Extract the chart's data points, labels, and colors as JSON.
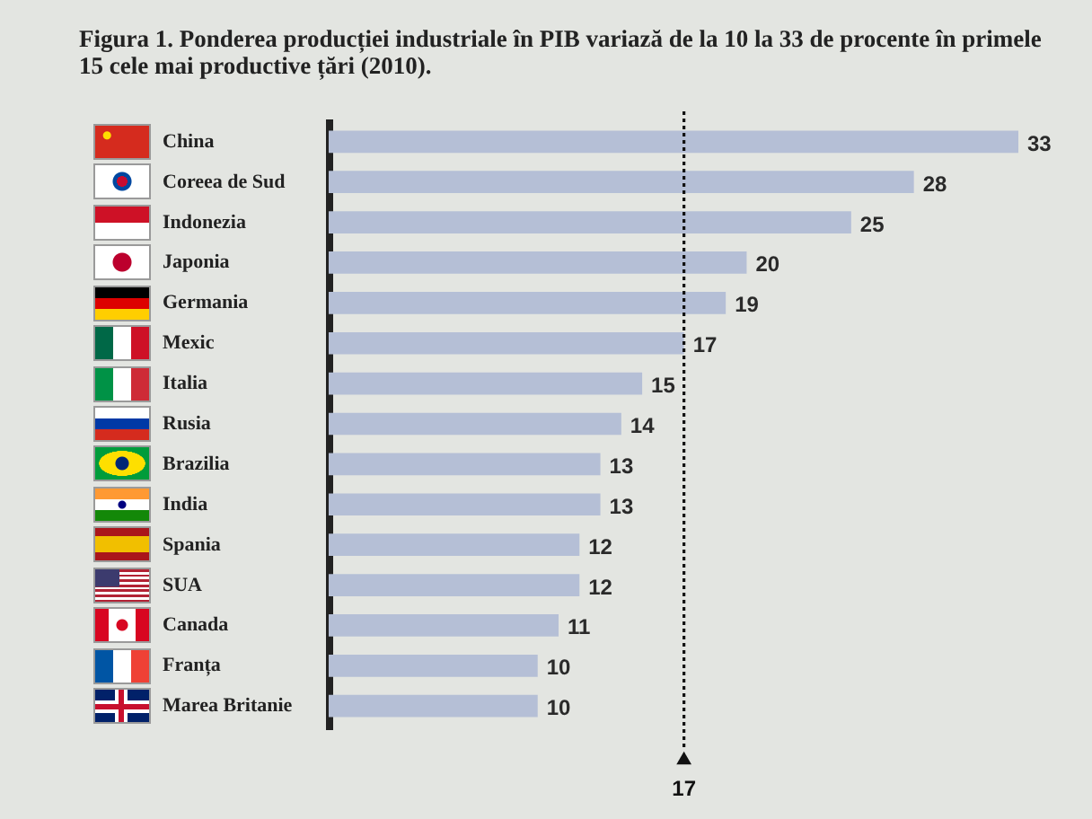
{
  "chart_data": {
    "type": "bar",
    "orientation": "horizontal",
    "title": "Figura 1. Ponderea producției industriale în PIB variază de la 10 la 33 de procente în primele 15 cele mai productive țări (2010).",
    "categories": [
      "China",
      "Coreea de Sud",
      "Indonezia",
      "Japonia",
      "Germania",
      "Mexic",
      "Italia",
      "Rusia",
      "Brazilia",
      "India",
      "Spania",
      "SUA",
      "Canada",
      "Franța",
      "Marea Britanie"
    ],
    "values": [
      33,
      28,
      25,
      20,
      19,
      17,
      15,
      14,
      13,
      13,
      12,
      12,
      11,
      10,
      10
    ],
    "color": "#b5bfd6",
    "tick_labels": "y",
    "data_labels": true,
    "ref_lines": [
      {
        "axis": "x",
        "value": 17,
        "label": "17",
        "color": "#111111",
        "line_style": "dotted"
      }
    ]
  }
}
